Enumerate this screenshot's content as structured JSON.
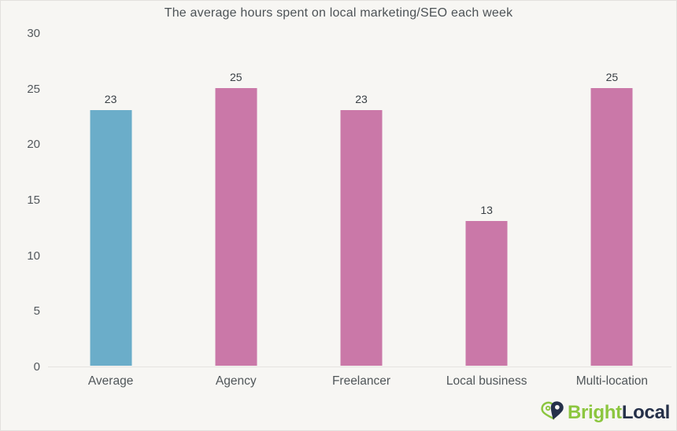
{
  "chart_data": {
    "type": "bar",
    "title": "The average hours spent on local marketing/SEO each week",
    "categories": [
      "Average",
      "Agency",
      "Freelancer",
      "Local business",
      "Multi-location"
    ],
    "values": [
      23,
      25,
      23,
      13,
      25
    ],
    "bar_colors": [
      "#6badc9",
      "#ca78a8",
      "#ca78a8",
      "#ca78a8",
      "#ca78a8"
    ],
    "value_labels": [
      "23",
      "25",
      "23",
      "13",
      "25"
    ],
    "yticks": [
      0,
      5,
      10,
      15,
      20,
      25,
      30
    ],
    "ylim": [
      0,
      30
    ],
    "xlabel": "",
    "ylabel": "",
    "grid": false,
    "legend_position": "none",
    "background_color": "#f7f6f3"
  },
  "colors": {
    "bar_blue": "#6badc9",
    "bar_pink": "#ca78a8",
    "title_text": "#4c5256",
    "axis_text": "#53585c",
    "baseline": "#e5e3e0",
    "logo_green": "#8cc63f",
    "logo_navy": "#253049"
  },
  "footer": {
    "logo_icon": "map-pin-heart-icon",
    "logo_text_bright": "Bright",
    "logo_text_local": "Local"
  }
}
